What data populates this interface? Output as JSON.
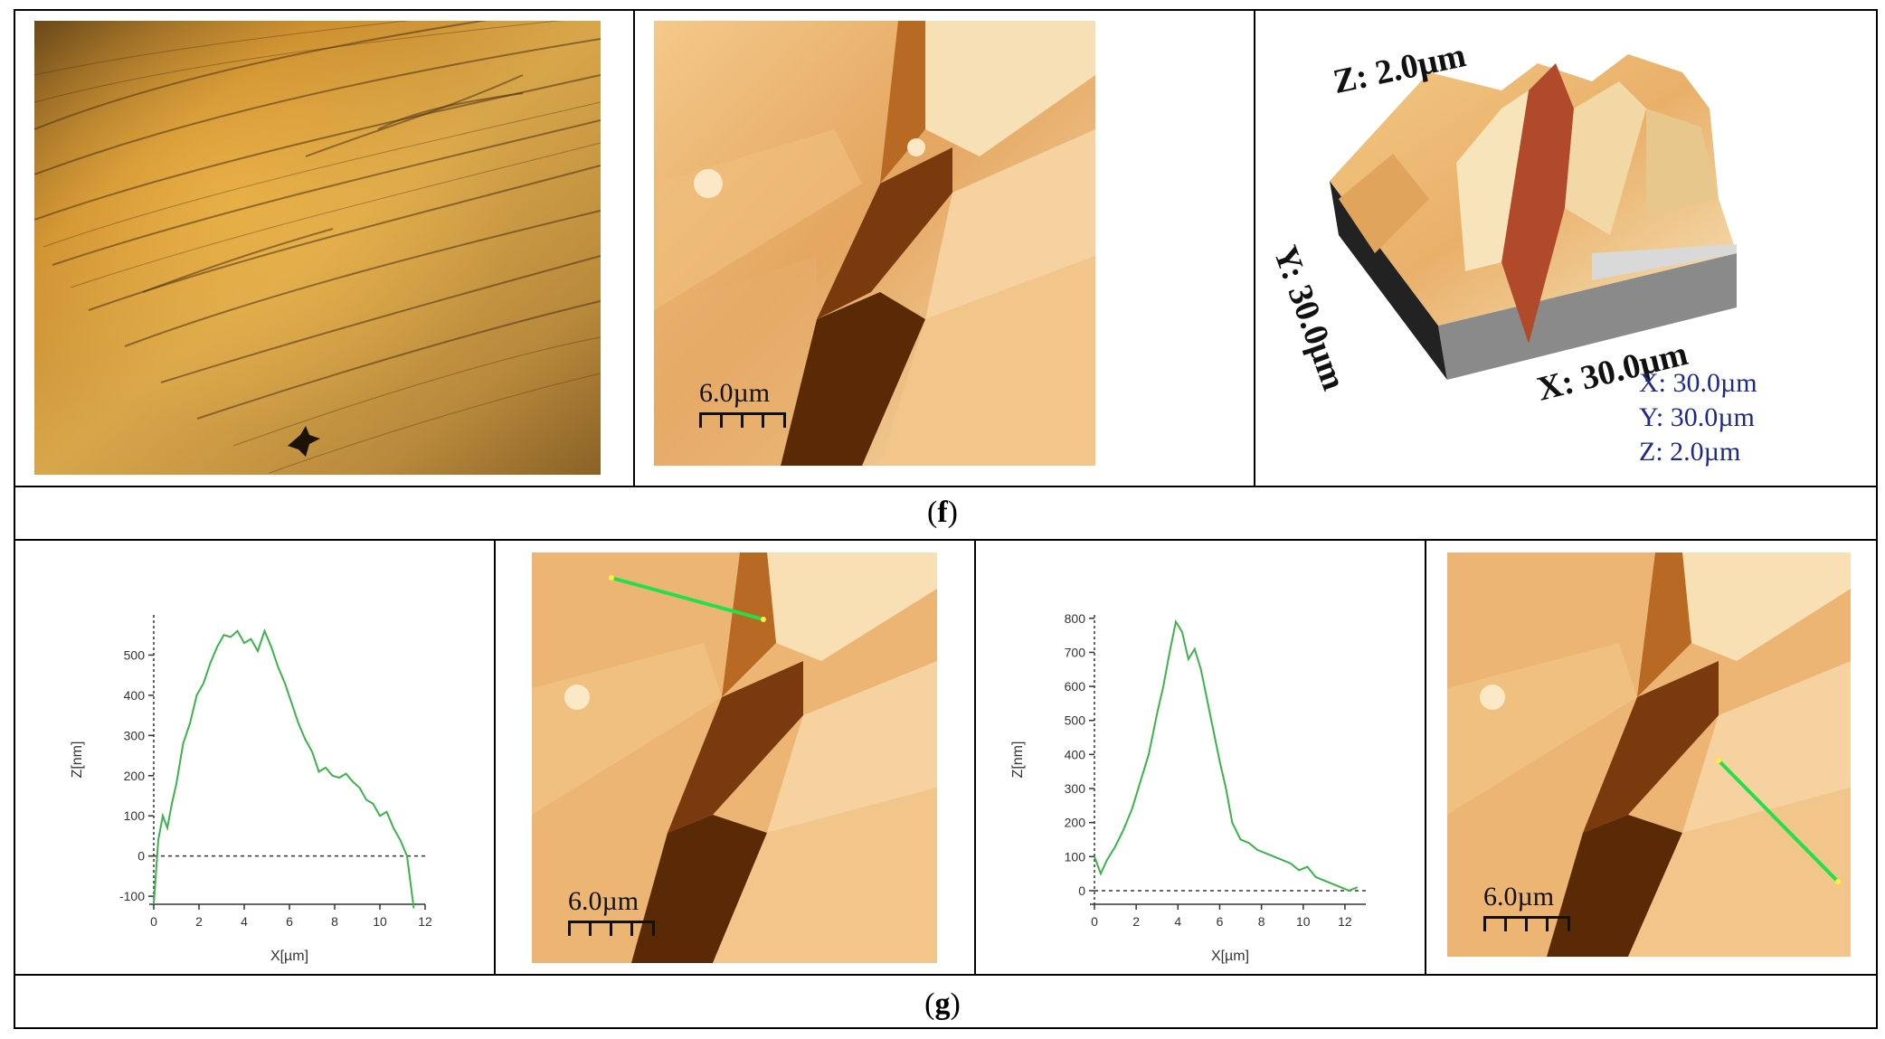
{
  "captions": {
    "f": "f",
    "g": "g"
  },
  "panels": {
    "optical": {
      "name": "optical-micrograph"
    },
    "afm_2d_top": {
      "scale_label": "6.0µm"
    },
    "afm_3d": {
      "z_axis": "Z: 2.0µm",
      "y_axis": "Y: 30.0µm",
      "x_axis": "X: 30.0µm",
      "legend": [
        "X: 30.0µm",
        "Y: 30.0µm",
        "Z: 2.0µm"
      ]
    },
    "afm_2d_left": {
      "scale_label": "6.0µm"
    },
    "afm_2d_right": {
      "scale_label": "6.0µm"
    }
  },
  "colors": {
    "profile_line": "#3cb34a",
    "marker_line": "#22e04a",
    "afm_light": "#f6d8a8",
    "afm_dark": "#5a2a06"
  },
  "chart_data": [
    {
      "type": "line",
      "xlabel": "X[µm]",
      "ylabel": "Z[nm]",
      "xlim": [
        0,
        12
      ],
      "ylim": [
        -120,
        600
      ],
      "xticks": [
        0,
        2,
        4,
        6,
        8,
        10,
        12
      ],
      "yticks": [
        -100,
        0,
        100,
        200,
        300,
        400,
        500
      ],
      "series": [
        {
          "x": [
            0,
            0.2,
            0.4,
            0.6,
            0.8,
            1.0,
            1.3,
            1.6,
            1.9,
            2.2,
            2.5,
            2.8,
            3.1,
            3.4,
            3.7,
            4.0,
            4.3,
            4.6,
            4.9,
            5.2,
            5.5,
            5.8,
            6.1,
            6.4,
            6.7,
            7.0,
            7.3,
            7.6,
            7.9,
            8.2,
            8.5,
            8.8,
            9.1,
            9.4,
            9.7,
            10.0,
            10.3,
            10.6,
            10.9,
            11.2,
            11.5
          ],
          "y": [
            -120,
            40,
            100,
            70,
            130,
            180,
            280,
            330,
            400,
            430,
            480,
            520,
            550,
            545,
            560,
            530,
            540,
            510,
            560,
            520,
            470,
            430,
            380,
            330,
            290,
            260,
            210,
            220,
            200,
            195,
            205,
            185,
            170,
            140,
            130,
            100,
            110,
            70,
            40,
            0,
            -130
          ]
        }
      ]
    },
    {
      "type": "line",
      "xlabel": "X[µm]",
      "ylabel": "Z[nm]",
      "xlim": [
        0,
        13
      ],
      "ylim": [
        -40,
        810
      ],
      "xticks": [
        0,
        2,
        4,
        6,
        8,
        10,
        12
      ],
      "yticks": [
        0,
        100,
        200,
        300,
        400,
        500,
        600,
        700,
        800
      ],
      "series": [
        {
          "x": [
            0,
            0.3,
            0.6,
            1.0,
            1.4,
            1.8,
            2.2,
            2.6,
            3.0,
            3.3,
            3.6,
            3.9,
            4.2,
            4.5,
            4.8,
            5.1,
            5.4,
            5.7,
            6.0,
            6.3,
            6.6,
            7.0,
            7.4,
            7.8,
            8.2,
            8.6,
            9.0,
            9.4,
            9.8,
            10.2,
            10.6,
            11.0,
            11.4,
            11.8,
            12.2,
            12.6
          ],
          "y": [
            100,
            50,
            90,
            130,
            180,
            240,
            320,
            400,
            520,
            600,
            700,
            790,
            760,
            680,
            710,
            650,
            560,
            470,
            380,
            300,
            200,
            150,
            140,
            120,
            110,
            100,
            90,
            80,
            60,
            70,
            40,
            30,
            20,
            10,
            0,
            10
          ]
        }
      ]
    }
  ]
}
